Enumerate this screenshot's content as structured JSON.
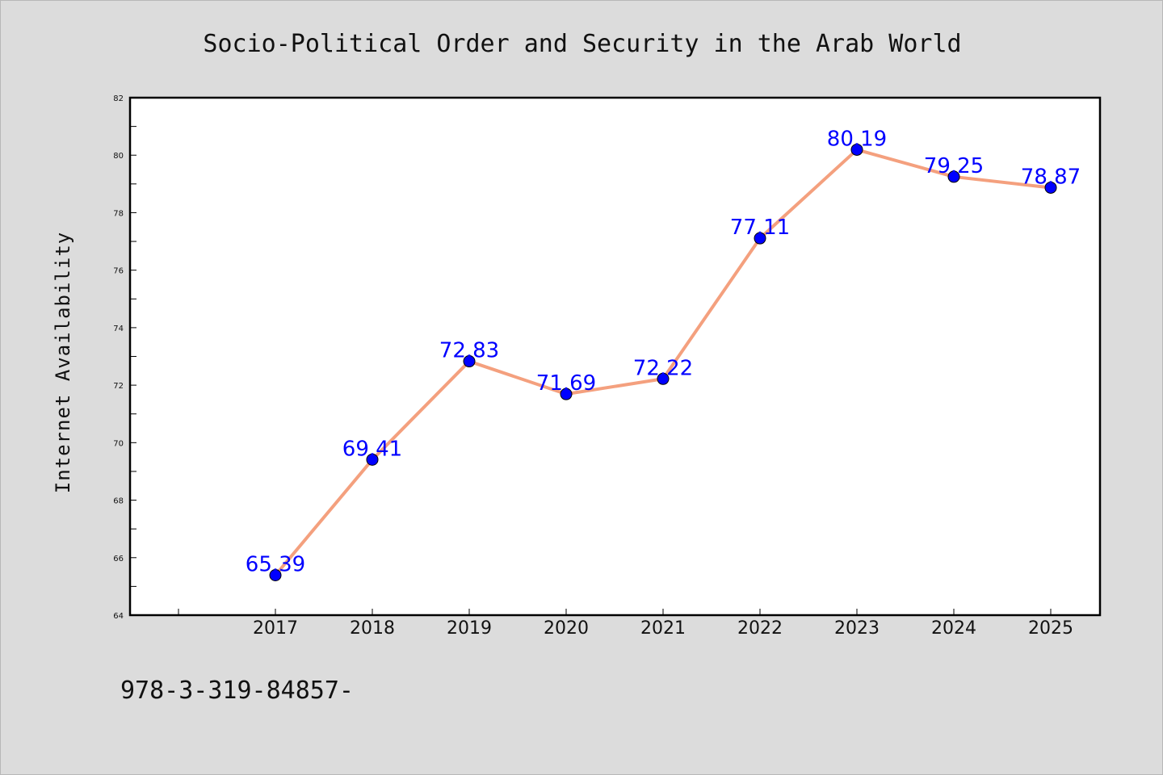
{
  "chart_data": {
    "type": "line",
    "title": "Socio-Political Order and Security in the Arab World",
    "xlabel": "",
    "ylabel": "Internet Availability",
    "categories": [
      "2017",
      "2018",
      "2019",
      "2020",
      "2021",
      "2022",
      "2023",
      "2024",
      "2025"
    ],
    "series": [
      {
        "values": [
          65.39,
          69.41,
          72.83,
          71.69,
          72.22,
          77.11,
          80.19,
          79.25,
          78.87
        ],
        "line_color": "#f4a07e",
        "marker_color": "#0000ff"
      }
    ],
    "data_labels": [
      "65.39",
      "69.41",
      "72.83",
      "71.69",
      "72.22",
      "77.11",
      "80.19",
      "79.25",
      "78.87"
    ],
    "ylim": [
      64,
      82
    ],
    "yticks": [
      "64",
      "66",
      "68",
      "70",
      "72",
      "74",
      "76",
      "78",
      "80",
      "82"
    ],
    "grid": false,
    "legend": "none",
    "footer_text": "978-3-319-84857-"
  }
}
